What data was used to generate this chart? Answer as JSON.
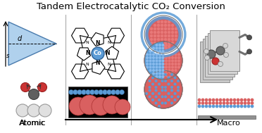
{
  "title": "Tandem Electrocatalytic CO₂ Conversion",
  "title_fontsize": 9.5,
  "label_atomic": "Atomic",
  "label_macro": "Macro",
  "label_d": "d",
  "label_s": "s",
  "bg_color": "#ffffff",
  "divider_color": "#aaaaaa",
  "blue_color": "#5b9bd5",
  "pink_color": "#d96060",
  "co_color": "#5b9bd5",
  "gray_atom": "#888888",
  "red_atom": "#cc3333",
  "white_atom": "#e8e8e8",
  "dark_color": "#222222",
  "plate_color": "#d8d8d8"
}
